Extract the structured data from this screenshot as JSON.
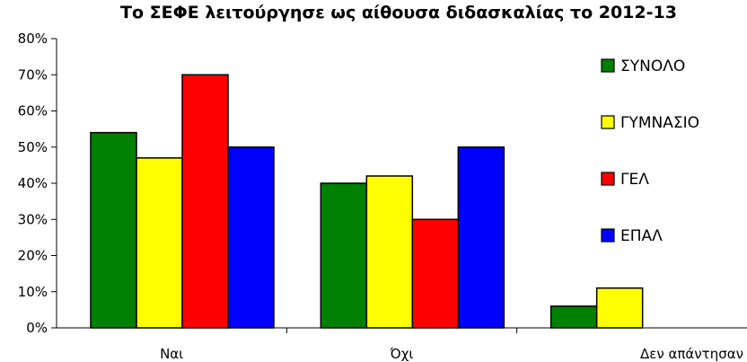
{
  "chart_data": {
    "type": "bar",
    "title": "Το ΣΕΦΕ λειτούργησε ως αίθουσα διδασκαλίας το 2012-13",
    "xlabel": "",
    "ylabel": "",
    "ylim": [
      0,
      80
    ],
    "yticks": [
      "0%",
      "10%",
      "20%",
      "30%",
      "40%",
      "50%",
      "60%",
      "70%",
      "80%"
    ],
    "y_unit": "%",
    "categories": [
      "Ναι",
      "Όχι",
      "Δεν απάντησαν"
    ],
    "series": [
      {
        "name": "ΣΥΝΟΛΟ",
        "color": "#008000",
        "values": [
          54,
          40,
          6
        ]
      },
      {
        "name": "ΓΥΜΝΑΣΙΟ",
        "color": "#ffff00",
        "values": [
          47,
          42,
          11
        ]
      },
      {
        "name": "ΓΕΛ",
        "color": "#ff0000",
        "values": [
          70,
          30,
          null
        ]
      },
      {
        "name": "ΕΠΑΛ",
        "color": "#0000ff",
        "values": [
          50,
          50,
          null
        ]
      }
    ],
    "grid": false,
    "legend": "right"
  }
}
